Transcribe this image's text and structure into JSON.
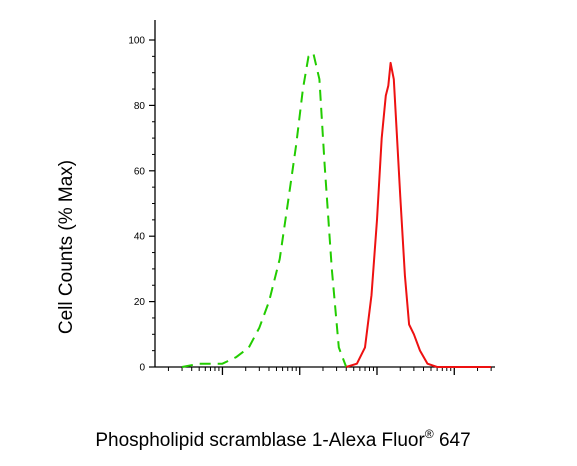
{
  "chart_data": {
    "type": "line",
    "title": "",
    "xlabel": "Phospholipid scramblase 1-Alexa Fluor",
    "xlabel_superscript": "®",
    "xlabel_suffix": " 647",
    "ylabel": "Cell Counts (% Max)",
    "x_scale": "log",
    "ylim": [
      0,
      100
    ],
    "yticks": [
      0,
      20,
      40,
      60,
      80,
      100
    ],
    "grid": false,
    "series": [
      {
        "color": "#22cc00",
        "dash": "dashed",
        "x": [
          3,
          5,
          10,
          15,
          22,
          30,
          40,
          55,
          70,
          90,
          110,
          130,
          150,
          180,
          210,
          260,
          320,
          400
        ],
        "y": [
          0,
          1,
          1,
          3,
          6,
          12,
          20,
          33,
          50,
          68,
          85,
          95,
          96,
          88,
          62,
          30,
          6,
          0
        ]
      },
      {
        "color": "#ee1111",
        "dash": "solid",
        "x": [
          400,
          550,
          700,
          850,
          1000,
          1150,
          1300,
          1400,
          1500,
          1650,
          1800,
          2000,
          2300,
          2600,
          3000,
          3600,
          4500,
          6000,
          30000
        ],
        "y": [
          0,
          1,
          6,
          22,
          45,
          70,
          83,
          86,
          93,
          88,
          72,
          52,
          28,
          13,
          10,
          5,
          1,
          0,
          0
        ]
      }
    ]
  }
}
